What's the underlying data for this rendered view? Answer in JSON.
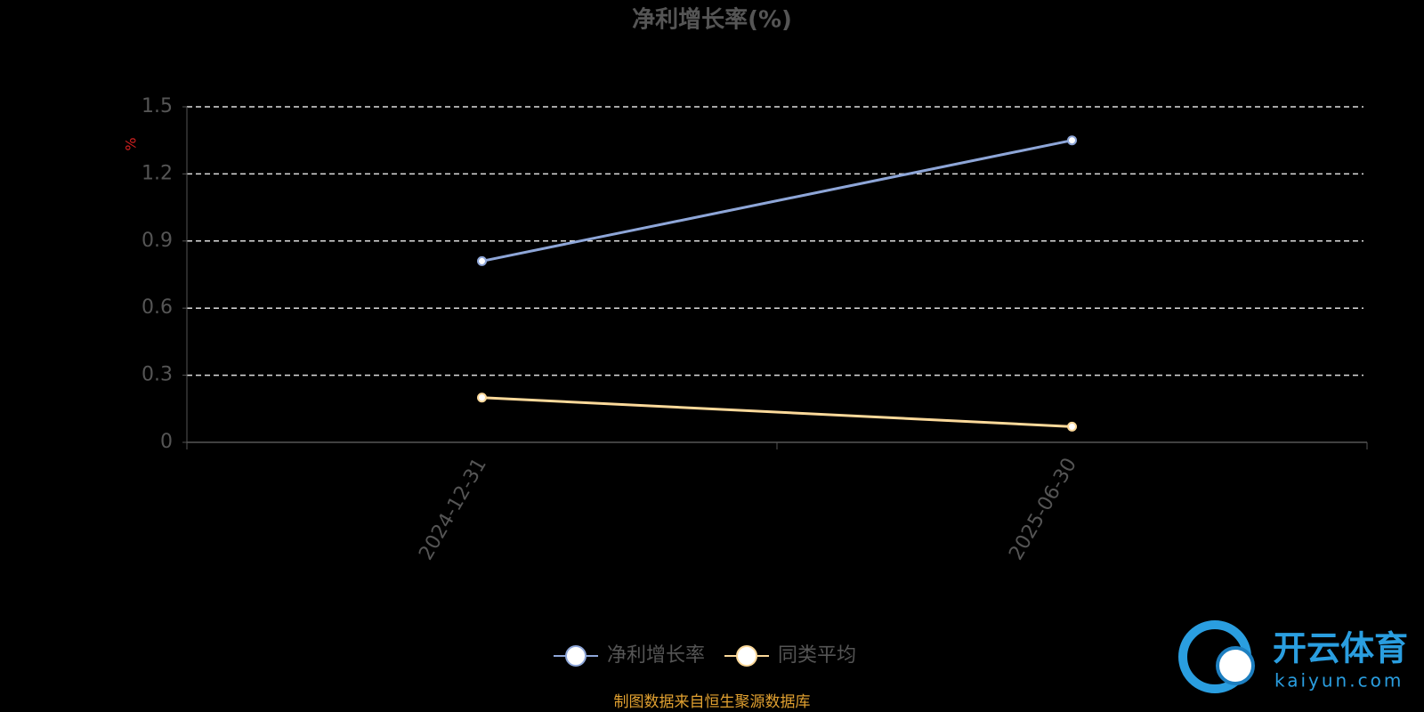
{
  "chart_data": {
    "type": "line",
    "title": "净利增长率(%)",
    "y_label": "%",
    "categories": [
      "2024-12-31",
      "2025-06-30"
    ],
    "series": [
      {
        "name": "净利增长率",
        "color": "#8ea6d8",
        "values": [
          0.81,
          1.35
        ]
      },
      {
        "name": "同类平均",
        "color": "#fcd99a",
        "values": [
          0.2,
          0.07
        ]
      }
    ],
    "ylim": [
      0,
      1.5
    ],
    "yticks": [
      0,
      0.3,
      0.6,
      0.9,
      1.2,
      1.5
    ],
    "grid": true,
    "legend": "bottom",
    "source": "制图数据来自恒生聚源数据库",
    "watermark": {
      "title": "开云体育",
      "subtitle": "kaiyun.com"
    }
  }
}
